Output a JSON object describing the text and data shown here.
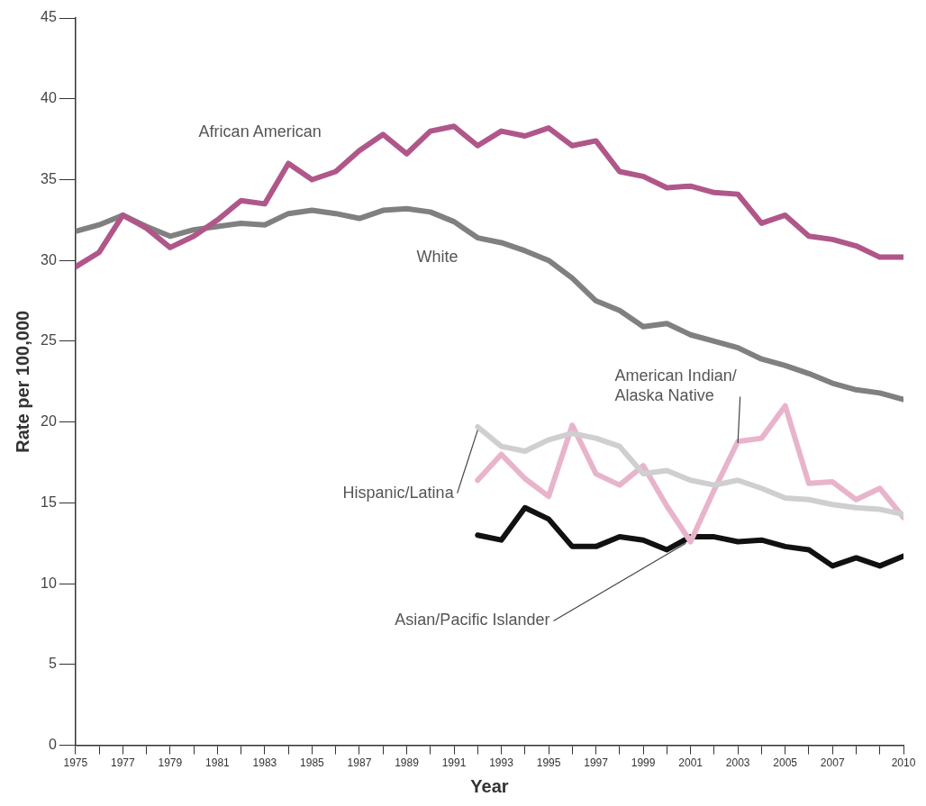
{
  "chart_data": {
    "type": "line",
    "xlabel": "Year",
    "ylabel": "Rate per 100,000",
    "x": [
      1975,
      1976,
      1977,
      1978,
      1979,
      1980,
      1981,
      1982,
      1983,
      1984,
      1985,
      1986,
      1987,
      1988,
      1989,
      1990,
      1991,
      1992,
      1993,
      1994,
      1995,
      1996,
      1997,
      1998,
      1999,
      2000,
      2001,
      2002,
      2003,
      2004,
      2005,
      2006,
      2007,
      2008,
      2009,
      2010
    ],
    "series": [
      {
        "name": "African American",
        "color": "#b0578a",
        "values": [
          29.6,
          30.5,
          32.8,
          32.0,
          30.8,
          31.5,
          32.5,
          33.7,
          33.5,
          36.0,
          35.0,
          35.5,
          36.8,
          37.8,
          36.6,
          38.0,
          38.3,
          37.1,
          38.0,
          37.7,
          38.2,
          37.1,
          37.4,
          35.5,
          35.2,
          34.5,
          34.6,
          34.2,
          34.1,
          32.3,
          32.8,
          31.5,
          31.3,
          30.9,
          30.2,
          30.2
        ]
      },
      {
        "name": "White",
        "color": "#808080",
        "values": [
          31.8,
          32.2,
          32.8,
          32.1,
          31.5,
          31.9,
          32.1,
          32.3,
          32.2,
          32.9,
          33.1,
          32.9,
          32.6,
          33.1,
          33.2,
          33.0,
          32.4,
          31.4,
          31.1,
          30.6,
          30.0,
          28.9,
          27.5,
          26.9,
          25.9,
          26.1,
          25.4,
          25.0,
          24.6,
          23.9,
          23.5,
          23.0,
          22.4,
          22.0,
          21.8,
          21.4
        ]
      },
      {
        "name": "Hispanic/Latina",
        "color": "#cfcfcf",
        "values": [
          null,
          null,
          null,
          null,
          null,
          null,
          null,
          null,
          null,
          null,
          null,
          null,
          null,
          null,
          null,
          null,
          null,
          19.7,
          18.5,
          18.2,
          18.9,
          19.3,
          19.0,
          18.5,
          16.8,
          17.0,
          16.4,
          16.1,
          16.4,
          15.9,
          15.3,
          15.2,
          14.9,
          14.7,
          14.6,
          14.3
        ]
      },
      {
        "name": "American Indian/\nAlaska Native",
        "color": "#e8b4cc",
        "values": [
          null,
          null,
          null,
          null,
          null,
          null,
          null,
          null,
          null,
          null,
          null,
          null,
          null,
          null,
          null,
          null,
          null,
          16.4,
          18.0,
          16.5,
          15.4,
          19.8,
          16.8,
          16.1,
          17.3,
          14.8,
          12.6,
          15.8,
          18.8,
          19.0,
          21.0,
          16.2,
          16.3,
          15.2,
          15.9,
          14.1
        ]
      },
      {
        "name": "Asian/Pacific Islander",
        "color": "#111111",
        "values": [
          null,
          null,
          null,
          null,
          null,
          null,
          null,
          null,
          null,
          null,
          null,
          null,
          null,
          null,
          null,
          null,
          null,
          13.0,
          12.7,
          14.7,
          14.0,
          12.3,
          12.3,
          12.9,
          12.7,
          12.1,
          12.9,
          12.9,
          12.6,
          12.7,
          12.3,
          12.1,
          11.1,
          11.6,
          11.1,
          11.7
        ]
      }
    ],
    "xlim": [
      1975,
      2010
    ],
    "xticks": [
      1975,
      {
        "value": 1976,
        "label": null
      },
      1977,
      {
        "value": 1978,
        "label": null
      },
      1979,
      {
        "value": 1980,
        "label": null
      },
      1981,
      {
        "value": 1982,
        "label": null
      },
      1983,
      {
        "value": 1984,
        "label": null
      },
      1985,
      {
        "value": 1986,
        "label": null
      },
      1987,
      {
        "value": 1988,
        "label": null
      },
      1989,
      {
        "value": 1990,
        "label": null
      },
      1991,
      {
        "value": 1992,
        "label": null
      },
      1993,
      {
        "value": 1994,
        "label": null
      },
      1995,
      {
        "value": 1996,
        "label": null
      },
      1997,
      {
        "value": 1998,
        "label": null
      },
      1999,
      {
        "value": 2000,
        "label": null
      },
      2001,
      {
        "value": 2002,
        "label": null
      },
      2003,
      {
        "value": 2004,
        "label": null
      },
      2005,
      {
        "value": 2006,
        "label": null
      },
      2007,
      {
        "value": 2008,
        "label": null
      },
      {
        "value": 2009,
        "label": null
      },
      2010
    ],
    "ylim": [
      0,
      45
    ],
    "yticks": [
      0,
      5,
      10,
      15,
      20,
      25,
      30,
      35,
      40,
      45
    ],
    "grid": false,
    "legend": false,
    "marker": "none",
    "line_style": "solid"
  }
}
